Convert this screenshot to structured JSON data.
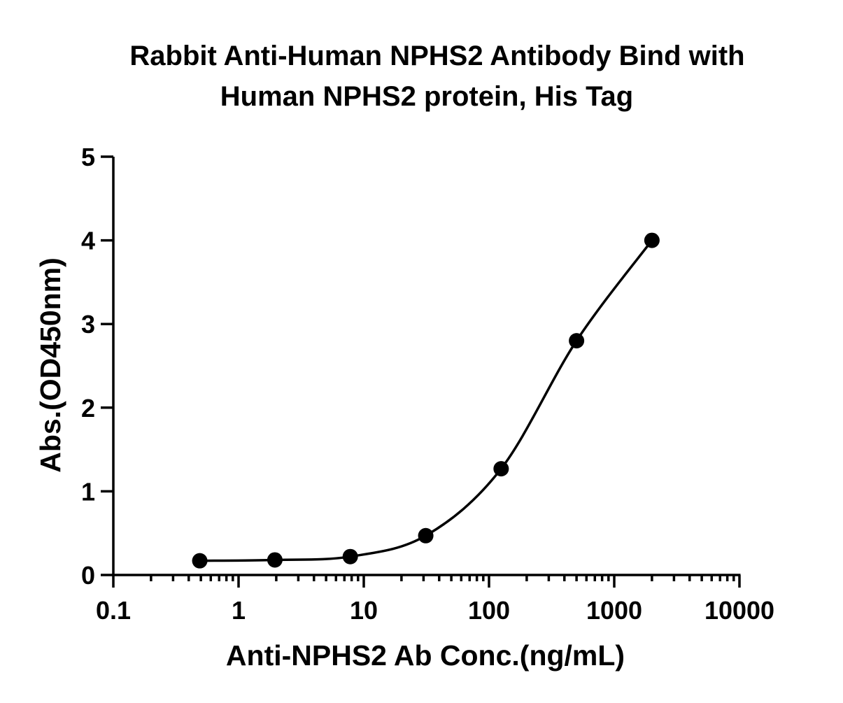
{
  "chart_data": {
    "type": "scatter",
    "title_lines": [
      "Rabbit Anti-Human NPHS2 Antibody Bind with",
      "Human NPHS2 protein, His Tag"
    ],
    "xlabel": "Anti-NPHS2 Ab Conc.(ng/mL)",
    "ylabel": "Abs.(OD450nm)",
    "x_scale": "log",
    "xlim": [
      0.1,
      10000
    ],
    "ylim": [
      0,
      5
    ],
    "x_ticks": [
      0.1,
      1,
      10,
      100,
      1000,
      10000
    ],
    "x_tick_labels": [
      "0.1",
      "1",
      "10",
      "100",
      "1000",
      "10000"
    ],
    "y_ticks": [
      0,
      1,
      2,
      3,
      4,
      5
    ],
    "y_tick_labels": [
      "0",
      "1",
      "2",
      "3",
      "4",
      "5"
    ],
    "grid": false,
    "legend": "none",
    "series": [
      {
        "x": [
          0.49,
          1.95,
          7.8,
          31.25,
          125,
          500,
          2000
        ],
        "y": [
          0.17,
          0.18,
          0.22,
          0.47,
          1.27,
          2.8,
          4.0
        ],
        "marker": "filled-circle",
        "fit_curve": "sigmoidal",
        "color": "#000000"
      }
    ]
  }
}
